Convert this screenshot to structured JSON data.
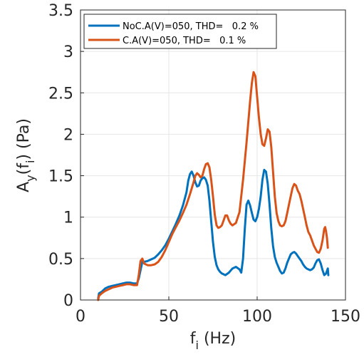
{
  "chart_data": {
    "type": "line",
    "title": "",
    "xlabel_main": "f",
    "xlabel_sub": "i",
    "xlabel_unit": " (Hz)",
    "ylabel_pre": "A",
    "ylabel_sub1": "y",
    "ylabel_mid": "(f",
    "ylabel_sub2": "i",
    "ylabel_post": ") (Pa)",
    "xlim": [
      0,
      150
    ],
    "ylim": [
      0,
      3.5
    ],
    "xticks": [
      0,
      50,
      100,
      150
    ],
    "yticks": [
      0,
      0.5,
      1,
      1.5,
      2,
      2.5,
      3,
      3.5
    ],
    "xtick_labels": [
      "0",
      "50",
      "100",
      "150"
    ],
    "ytick_labels": [
      "0",
      "0.5",
      "1",
      "1.5",
      "2",
      "2.5",
      "3",
      "3.5"
    ],
    "grid": true,
    "legend_position": "top-left",
    "series": [
      {
        "name": "NoC.A(V)=050, THD=   0.2 %",
        "color": "#0072BD",
        "points": [
          [
            10,
            0.02
          ],
          [
            10.5,
            0.08
          ],
          [
            12,
            0.1
          ],
          [
            14,
            0.14
          ],
          [
            16,
            0.16
          ],
          [
            18,
            0.17
          ],
          [
            20,
            0.18
          ],
          [
            22,
            0.19
          ],
          [
            24,
            0.2
          ],
          [
            26,
            0.21
          ],
          [
            28,
            0.21
          ],
          [
            30,
            0.2
          ],
          [
            32,
            0.2
          ],
          [
            33,
            0.26
          ],
          [
            34,
            0.36
          ],
          [
            35,
            0.46
          ],
          [
            36,
            0.46
          ],
          [
            38,
            0.47
          ],
          [
            40,
            0.49
          ],
          [
            42,
            0.51
          ],
          [
            44,
            0.55
          ],
          [
            46,
            0.6
          ],
          [
            48,
            0.66
          ],
          [
            50,
            0.74
          ],
          [
            52,
            0.83
          ],
          [
            54,
            0.92
          ],
          [
            56,
            1.02
          ],
          [
            58,
            1.14
          ],
          [
            60,
            1.3
          ],
          [
            61,
            1.44
          ],
          [
            62,
            1.52
          ],
          [
            63,
            1.55
          ],
          [
            64,
            1.5
          ],
          [
            65,
            1.42
          ],
          [
            66,
            1.37
          ],
          [
            67,
            1.38
          ],
          [
            68,
            1.44
          ],
          [
            69,
            1.47
          ],
          [
            70,
            1.48
          ],
          [
            71,
            1.45
          ],
          [
            72,
            1.38
          ],
          [
            73,
            1.2
          ],
          [
            74,
            0.95
          ],
          [
            75,
            0.7
          ],
          [
            76,
            0.52
          ],
          [
            77,
            0.42
          ],
          [
            78,
            0.37
          ],
          [
            79,
            0.34
          ],
          [
            80,
            0.32
          ],
          [
            82,
            0.3
          ],
          [
            84,
            0.33
          ],
          [
            86,
            0.38
          ],
          [
            88,
            0.4
          ],
          [
            90,
            0.37
          ],
          [
            91,
            0.33
          ],
          [
            92,
            0.5
          ],
          [
            93,
            0.85
          ],
          [
            94,
            1.15
          ],
          [
            95,
            1.2
          ],
          [
            96,
            1.14
          ],
          [
            97,
            1.05
          ],
          [
            98,
            0.97
          ],
          [
            99,
            0.95
          ],
          [
            100,
            1.0
          ],
          [
            101,
            1.1
          ],
          [
            102,
            1.25
          ],
          [
            103,
            1.45
          ],
          [
            104,
            1.57
          ],
          [
            105,
            1.55
          ],
          [
            106,
            1.4
          ],
          [
            107,
            1.15
          ],
          [
            108,
            0.87
          ],
          [
            109,
            0.65
          ],
          [
            110,
            0.52
          ],
          [
            111,
            0.45
          ],
          [
            112,
            0.4
          ],
          [
            113,
            0.35
          ],
          [
            114,
            0.32
          ],
          [
            115,
            0.33
          ],
          [
            116,
            0.38
          ],
          [
            117,
            0.45
          ],
          [
            118,
            0.5
          ],
          [
            119,
            0.55
          ],
          [
            120,
            0.57
          ],
          [
            121,
            0.58
          ],
          [
            122,
            0.56
          ],
          [
            123,
            0.53
          ],
          [
            124,
            0.5
          ],
          [
            125,
            0.47
          ],
          [
            126,
            0.43
          ],
          [
            127,
            0.4
          ],
          [
            128,
            0.38
          ],
          [
            129,
            0.37
          ],
          [
            130,
            0.36
          ],
          [
            131,
            0.37
          ],
          [
            132,
            0.39
          ],
          [
            133,
            0.44
          ],
          [
            134,
            0.48
          ],
          [
            135,
            0.49
          ],
          [
            136,
            0.44
          ],
          [
            137,
            0.36
          ],
          [
            138,
            0.3
          ],
          [
            139,
            0.32
          ],
          [
            140,
            0.38
          ],
          [
            140.3,
            0.3
          ]
        ]
      },
      {
        "name": "C.A(V)=050, THD=   0.1 %",
        "color": "#D95319",
        "points": [
          [
            10,
            0.0
          ],
          [
            10.5,
            0.05
          ],
          [
            12,
            0.08
          ],
          [
            14,
            0.11
          ],
          [
            16,
            0.13
          ],
          [
            18,
            0.15
          ],
          [
            20,
            0.16
          ],
          [
            22,
            0.17
          ],
          [
            24,
            0.18
          ],
          [
            26,
            0.19
          ],
          [
            28,
            0.19
          ],
          [
            30,
            0.18
          ],
          [
            32,
            0.18
          ],
          [
            33,
            0.3
          ],
          [
            34,
            0.47
          ],
          [
            35,
            0.5
          ],
          [
            36,
            0.44
          ],
          [
            38,
            0.42
          ],
          [
            40,
            0.42
          ],
          [
            42,
            0.43
          ],
          [
            44,
            0.46
          ],
          [
            46,
            0.52
          ],
          [
            48,
            0.6
          ],
          [
            50,
            0.7
          ],
          [
            52,
            0.8
          ],
          [
            54,
            0.88
          ],
          [
            56,
            0.96
          ],
          [
            58,
            1.05
          ],
          [
            60,
            1.15
          ],
          [
            62,
            1.28
          ],
          [
            64,
            1.42
          ],
          [
            65,
            1.5
          ],
          [
            66,
            1.53
          ],
          [
            67,
            1.51
          ],
          [
            68,
            1.48
          ],
          [
            69,
            1.5
          ],
          [
            70,
            1.58
          ],
          [
            71,
            1.64
          ],
          [
            72,
            1.65
          ],
          [
            73,
            1.6
          ],
          [
            74,
            1.45
          ],
          [
            75,
            1.25
          ],
          [
            76,
            1.03
          ],
          [
            77,
            0.9
          ],
          [
            78,
            0.87
          ],
          [
            79,
            0.88
          ],
          [
            80,
            0.9
          ],
          [
            81,
            0.96
          ],
          [
            82,
            1.02
          ],
          [
            83,
            1.02
          ],
          [
            84,
            0.96
          ],
          [
            85,
            0.92
          ],
          [
            86,
            0.9
          ],
          [
            88,
            0.93
          ],
          [
            90,
            1.06
          ],
          [
            92,
            1.45
          ],
          [
            94,
            1.9
          ],
          [
            95,
            2.15
          ],
          [
            96,
            2.4
          ],
          [
            97,
            2.62
          ],
          [
            98,
            2.75
          ],
          [
            99,
            2.7
          ],
          [
            100,
            2.45
          ],
          [
            101,
            2.2
          ],
          [
            102,
            2.0
          ],
          [
            103,
            1.88
          ],
          [
            104,
            1.86
          ],
          [
            105,
            1.95
          ],
          [
            106,
            2.06
          ],
          [
            107,
            2.03
          ],
          [
            108,
            1.85
          ],
          [
            109,
            1.55
          ],
          [
            110,
            1.25
          ],
          [
            111,
            1.05
          ],
          [
            112,
            0.95
          ],
          [
            113,
            0.9
          ],
          [
            114,
            0.89
          ],
          [
            115,
            0.9
          ],
          [
            116,
            0.95
          ],
          [
            117,
            1.05
          ],
          [
            118,
            1.15
          ],
          [
            119,
            1.25
          ],
          [
            120,
            1.35
          ],
          [
            121,
            1.4
          ],
          [
            122,
            1.38
          ],
          [
            123,
            1.32
          ],
          [
            124,
            1.28
          ],
          [
            125,
            1.2
          ],
          [
            126,
            1.1
          ],
          [
            127,
            1.0
          ],
          [
            128,
            0.9
          ],
          [
            129,
            0.82
          ],
          [
            130,
            0.78
          ],
          [
            131,
            0.72
          ],
          [
            132,
            0.66
          ],
          [
            133,
            0.62
          ],
          [
            134,
            0.58
          ],
          [
            135,
            0.57
          ],
          [
            136,
            0.62
          ],
          [
            137,
            0.72
          ],
          [
            138,
            0.86
          ],
          [
            138.5,
            0.88
          ],
          [
            139,
            0.83
          ],
          [
            139.5,
            0.75
          ],
          [
            140,
            0.63
          ]
        ]
      }
    ]
  }
}
